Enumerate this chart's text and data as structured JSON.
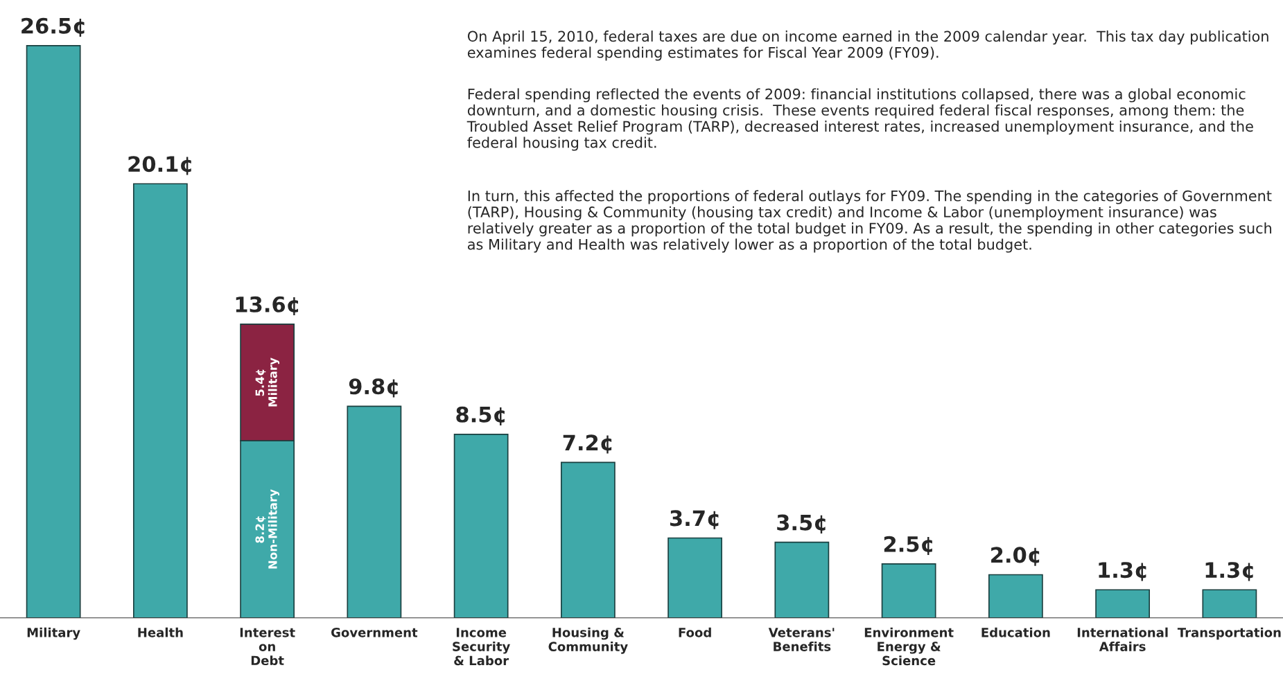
{
  "chart_data": {
    "type": "bar",
    "stacked": true,
    "grid": false,
    "legend": false,
    "categories": [
      "Military",
      "Health",
      "Interest\non\nDebt",
      "Government",
      "Income\nSecurity\n& Labor",
      "Housing &\nCommunity",
      "Food",
      "Veterans'\nBenefits",
      "Environment\nEnergy &\nScience",
      "Education",
      "International\nAffairs",
      "Transportation"
    ],
    "series": [
      {
        "color": "#3fa9a9",
        "values": [
          26.5,
          20.1,
          8.2,
          9.8,
          8.5,
          7.2,
          3.7,
          3.5,
          2.5,
          2.0,
          1.3,
          1.3
        ],
        "value_labels": [
          "26.5¢",
          "20.1¢",
          "8.2¢\nNon-Military",
          "9.8¢",
          "8.5¢",
          "7.2¢",
          "3.7¢",
          "3.5¢",
          "2.5¢",
          "2.0¢",
          "1.3¢",
          "1.3¢"
        ]
      },
      {
        "color": "#8b2342",
        "values": [
          null,
          null,
          5.4,
          null,
          null,
          null,
          null,
          null,
          null,
          null,
          null,
          null
        ],
        "value_labels": [
          null,
          null,
          "5.4¢\nMilitary",
          null,
          null,
          null,
          null,
          null,
          null,
          null,
          null,
          null
        ]
      }
    ],
    "totals": [
      null,
      null,
      "13.6¢",
      null,
      null,
      null,
      null,
      null,
      null,
      null,
      null,
      null
    ],
    "annotations": [
      "On April 15, 2010, federal taxes are due on income earned in the 2009 calendar year.  This tax day publication examines federal spending estimates for Fiscal Year 2009 (FY09).",
      "Federal spending reflected the events of 2009: financial institutions collapsed, there was a global economic downturn, and a domestic housing crisis.  These events required federal fiscal responses, among them: the Troubled Asset Relief Program (TARP), decreased interest rates, increased unemployment insurance, and the federal housing tax credit.",
      "In turn, this affected the proportions of federal outlays for FY09. The spending in the categories of Government (TARP), Housing & Community (housing tax credit) and Income & Labor (unemployment insurance) was relatively greater as a proportion of the total budget in FY09. As a result, the spending in other categories such as Military and Health was relatively lower as a proportion of the total budget."
    ]
  }
}
